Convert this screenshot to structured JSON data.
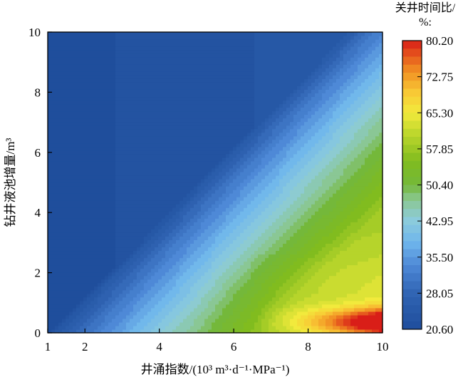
{
  "chart_data": {
    "type": "heatmap",
    "subtype": "filled-contour",
    "title": "",
    "xlabel": "井涌指数/(10³ m³·d⁻¹·MPa⁻¹)",
    "ylabel": "钻井液池增量/m³",
    "xlim": [
      1,
      10
    ],
    "ylim": [
      0,
      10
    ],
    "x_ticks": [
      1,
      2,
      4,
      6,
      8,
      10
    ],
    "y_ticks": [
      0,
      2,
      4,
      6,
      8,
      10
    ],
    "x_tick_labels": [
      "1",
      "2",
      "4",
      "6",
      "8",
      "10"
    ],
    "y_tick_labels": [
      "0",
      "2",
      "4",
      "6",
      "8",
      "10"
    ],
    "colorbar": {
      "title_line1": "关井时间比/",
      "title_line2": "%:",
      "min": 20.6,
      "max": 80.2,
      "tick_labels": [
        "80.20",
        "72.75",
        "65.30",
        "57.85",
        "50.40",
        "42.95",
        "35.50",
        "28.05",
        "20.60"
      ],
      "tick_values": [
        80.2,
        72.75,
        65.3,
        57.85,
        50.4,
        42.95,
        35.5,
        28.05,
        20.6
      ],
      "colorscale": [
        [
          0.0,
          "#1f4e9c"
        ],
        [
          0.12,
          "#2f63b2"
        ],
        [
          0.22,
          "#4d88d6"
        ],
        [
          0.3,
          "#6fb6ec"
        ],
        [
          0.38,
          "#8dccdb"
        ],
        [
          0.45,
          "#8ac78f"
        ],
        [
          0.5,
          "#74b83a"
        ],
        [
          0.58,
          "#7fbb1f"
        ],
        [
          0.68,
          "#bfd82d"
        ],
        [
          0.75,
          "#f2ea3c"
        ],
        [
          0.82,
          "#f8c935"
        ],
        [
          0.9,
          "#f08a22"
        ],
        [
          1.0,
          "#d91e18"
        ]
      ]
    },
    "field_description_points": {
      "x": [
        1,
        2,
        4,
        6,
        8,
        10
      ],
      "y_at_x10": [
        0.3,
        1,
        2,
        4,
        6,
        10
      ],
      "note_values_at_y0.3": [
        21,
        28,
        40,
        55,
        68,
        80.2
      ],
      "note_values_at_y10": [
        20.6,
        21,
        24,
        29,
        34,
        38
      ]
    }
  }
}
